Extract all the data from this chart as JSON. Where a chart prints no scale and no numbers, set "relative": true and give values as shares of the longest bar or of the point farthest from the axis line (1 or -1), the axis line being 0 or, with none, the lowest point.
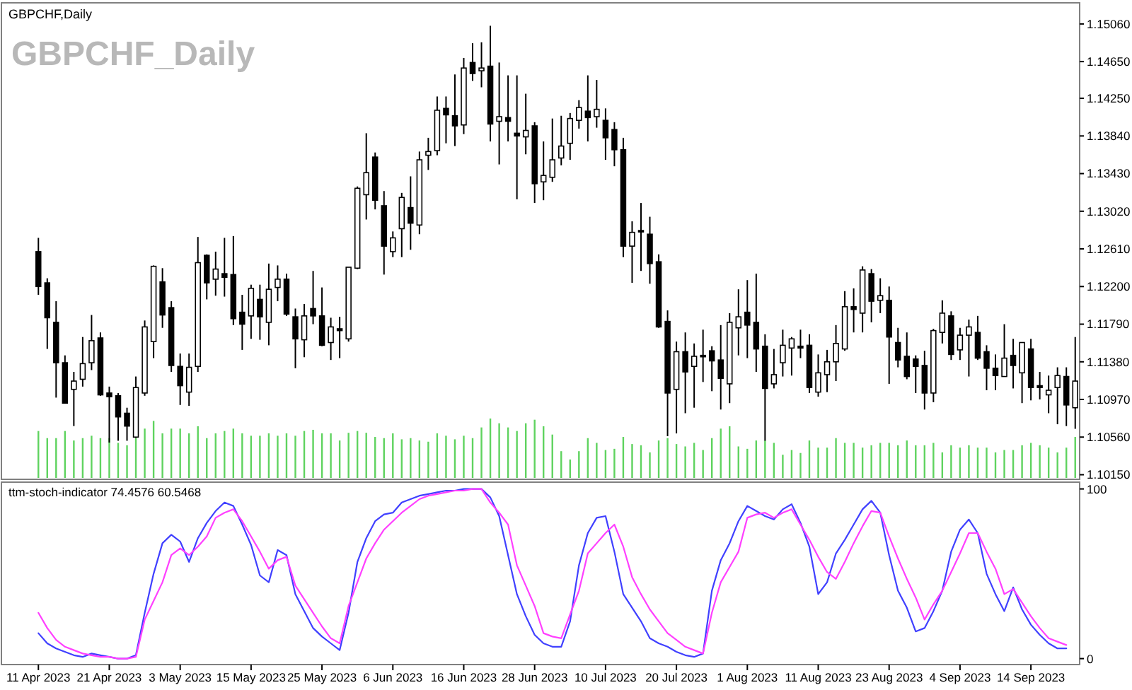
{
  "chart_data": [
    {
      "type": "candlestick",
      "title": "GBPCHF,Daily",
      "color": "#000000",
      "annotations": [
        "GBPCHF_Daily"
      ],
      "tick_labels": "y",
      "categories": [
        null,
        null,
        null,
        null,
        null,
        null,
        null,
        null,
        null,
        null,
        null,
        null,
        null,
        null,
        null,
        null,
        null,
        null,
        null,
        null,
        null,
        null,
        null,
        null,
        null,
        null,
        null,
        null,
        null,
        null,
        null,
        null,
        null,
        null,
        null,
        null,
        null,
        null,
        null,
        null,
        null,
        null,
        null,
        null,
        null,
        null,
        null,
        null,
        null,
        null,
        null,
        null,
        null,
        null,
        null,
        null,
        null,
        null,
        null,
        null,
        null,
        null,
        null,
        null,
        null,
        null,
        null,
        null,
        null,
        null,
        null,
        null,
        null,
        null,
        null,
        null,
        null,
        null,
        null,
        null,
        null,
        null,
        null,
        null,
        null,
        null,
        null,
        null,
        null,
        null,
        null,
        null,
        null,
        null,
        null,
        null,
        null,
        null,
        null,
        null,
        null,
        null,
        null,
        null,
        null,
        null,
        null,
        null,
        null,
        null,
        null,
        null,
        null,
        null,
        null,
        null,
        null,
        null
      ],
      "ylim": [
        1.101,
        1.1529
      ],
      "yticks": [
        {
          "value": 1.1015,
          "label": "1.10150"
        },
        {
          "value": 1.1056,
          "label": "1.10560"
        },
        {
          "value": 1.1097,
          "label": "1.10970"
        },
        {
          "value": 1.1138,
          "label": "1.11380"
        },
        {
          "value": 1.1179,
          "label": "1.11790"
        },
        {
          "value": 1.122,
          "label": "1.12200"
        },
        {
          "value": 1.1261,
          "label": "1.12610"
        },
        {
          "value": 1.1302,
          "label": "1.13020"
        },
        {
          "value": 1.1343,
          "label": "1.13430"
        },
        {
          "value": 1.1384,
          "label": "1.13840"
        },
        {
          "value": 1.1425,
          "label": "1.14250"
        },
        {
          "value": 1.1465,
          "label": "1.14650"
        },
        {
          "value": 1.1506,
          "label": "1.15060"
        }
      ],
      "ohlc": [
        [
          1.1258,
          1.1273,
          1.1211,
          1.122
        ],
        [
          1.1224,
          1.1229,
          1.1152,
          1.1186
        ],
        [
          1.1181,
          1.1204,
          1.1099,
          1.1137
        ],
        [
          1.1137,
          1.1145,
          1.1093,
          1.1093
        ],
        [
          1.1108,
          1.1127,
          1.1068,
          1.1117
        ],
        [
          1.1119,
          1.1165,
          1.1111,
          1.1136
        ],
        [
          1.1137,
          1.1189,
          1.1129,
          1.1161
        ],
        [
          1.1164,
          1.117,
          1.1101,
          1.1102
        ],
        [
          1.1104,
          1.1111,
          1.105,
          1.11
        ],
        [
          1.1101,
          1.1104,
          1.1052,
          1.1078
        ],
        [
          1.1082,
          1.1088,
          1.1052,
          1.1068
        ],
        [
          1.1056,
          1.1122,
          1.1055,
          1.111
        ],
        [
          1.1104,
          1.1183,
          1.1101,
          1.1176
        ],
        [
          1.116,
          1.1243,
          1.1142,
          1.1242
        ],
        [
          1.1225,
          1.124,
          1.1175,
          1.1189
        ],
        [
          1.1197,
          1.1204,
          1.1127,
          1.1134
        ],
        [
          1.1133,
          1.1147,
          1.1091,
          1.1112
        ],
        [
          1.1105,
          1.1147,
          1.109,
          1.1132
        ],
        [
          1.1133,
          1.1274,
          1.1127,
          1.1246
        ],
        [
          1.1254,
          1.1255,
          1.1206,
          1.1224
        ],
        [
          1.1228,
          1.1258,
          1.121,
          1.1239
        ],
        [
          1.1234,
          1.1273,
          1.1209,
          1.123
        ],
        [
          1.1233,
          1.1275,
          1.1178,
          1.1185
        ],
        [
          1.1192,
          1.1211,
          1.1151,
          1.1179
        ],
        [
          1.1188,
          1.1222,
          1.1163,
          1.1218
        ],
        [
          1.1206,
          1.1222,
          1.1162,
          1.1187
        ],
        [
          1.1181,
          1.1245,
          1.1156,
          1.1217
        ],
        [
          1.1219,
          1.1243,
          1.1204,
          1.1228
        ],
        [
          1.1228,
          1.1234,
          1.1188,
          1.119
        ],
        [
          1.1187,
          1.1196,
          1.1131,
          1.1163
        ],
        [
          1.1162,
          1.1201,
          1.1143,
          1.1188
        ],
        [
          1.1196,
          1.1237,
          1.1179,
          1.1188
        ],
        [
          1.1188,
          1.1219,
          1.1155,
          1.1156
        ],
        [
          1.1159,
          1.1186,
          1.114,
          1.1176
        ],
        [
          1.1174,
          1.1187,
          1.1142,
          1.1172
        ],
        [
          1.1163,
          1.1241,
          1.116,
          1.1241
        ],
        [
          1.124,
          1.1329,
          1.1239,
          1.1327
        ],
        [
          1.132,
          1.1387,
          1.1293,
          1.1344
        ],
        [
          1.1361,
          1.1366,
          1.1304,
          1.1314
        ],
        [
          1.1308,
          1.1324,
          1.1233,
          1.1264
        ],
        [
          1.1258,
          1.128,
          1.1252,
          1.1273
        ],
        [
          1.1283,
          1.1322,
          1.1252,
          1.1317
        ],
        [
          1.1306,
          1.134,
          1.126,
          1.1289
        ],
        [
          1.1287,
          1.1367,
          1.1277,
          1.1358
        ],
        [
          1.1363,
          1.1382,
          1.1347,
          1.1367
        ],
        [
          1.1368,
          1.1427,
          1.1363,
          1.1412
        ],
        [
          1.1414,
          1.1427,
          1.1376,
          1.1407
        ],
        [
          1.1406,
          1.1451,
          1.1373,
          1.1395
        ],
        [
          1.1396,
          1.1469,
          1.1386,
          1.1458
        ],
        [
          1.1464,
          1.1485,
          1.1444,
          1.1452
        ],
        [
          1.1455,
          1.1486,
          1.1437,
          1.1458
        ],
        [
          1.146,
          1.1504,
          1.1378,
          1.1397
        ],
        [
          1.14,
          1.1464,
          1.1353,
          1.1405
        ],
        [
          1.1404,
          1.145,
          1.1378,
          1.14
        ],
        [
          1.1387,
          1.145,
          1.1315,
          1.1384
        ],
        [
          1.1383,
          1.143,
          1.1364,
          1.139
        ],
        [
          1.1395,
          1.1399,
          1.1311,
          1.1332
        ],
        [
          1.1334,
          1.1378,
          1.1314,
          1.1341
        ],
        [
          1.1339,
          1.1403,
          1.1334,
          1.1358
        ],
        [
          1.136,
          1.1406,
          1.1352,
          1.1373
        ],
        [
          1.1376,
          1.1409,
          1.1358,
          1.1403
        ],
        [
          1.1401,
          1.1423,
          1.1392,
          1.1415
        ],
        [
          1.1411,
          1.145,
          1.1378,
          1.1404
        ],
        [
          1.1405,
          1.1445,
          1.1393,
          1.1413
        ],
        [
          1.1401,
          1.1414,
          1.1358,
          1.1382
        ],
        [
          1.1391,
          1.1399,
          1.1351,
          1.1369
        ],
        [
          1.1369,
          1.1382,
          1.1252,
          1.1264
        ],
        [
          1.1264,
          1.1291,
          1.1224,
          1.1279
        ],
        [
          1.1281,
          1.1311,
          1.1237,
          1.128
        ],
        [
          1.1277,
          1.1296,
          1.1223,
          1.1245
        ],
        [
          1.1247,
          1.1255,
          1.1175,
          1.1176
        ],
        [
          1.1182,
          1.1194,
          1.1057,
          1.1104
        ],
        [
          1.1108,
          1.116,
          1.106,
          1.1149
        ],
        [
          1.1149,
          1.117,
          1.1082,
          1.1127
        ],
        [
          1.1133,
          1.1158,
          1.1088,
          1.1144
        ],
        [
          1.1145,
          1.1173,
          1.1116,
          1.1144
        ],
        [
          1.115,
          1.1155,
          1.1106,
          1.1139
        ],
        [
          1.114,
          1.1178,
          1.1086,
          1.112
        ],
        [
          1.1114,
          1.1191,
          1.1093,
          1.1181
        ],
        [
          1.1175,
          1.1217,
          1.1145,
          1.1187
        ],
        [
          1.1192,
          1.1227,
          1.1142,
          1.1178
        ],
        [
          1.1181,
          1.1234,
          1.1127,
          1.1152
        ],
        [
          1.1155,
          1.1168,
          1.1052,
          1.1109
        ],
        [
          1.1114,
          1.1152,
          1.1109,
          1.1124
        ],
        [
          1.1137,
          1.1173,
          1.1122,
          1.1156
        ],
        [
          1.1153,
          1.1165,
          1.1123,
          1.1163
        ],
        [
          1.1155,
          1.1173,
          1.1142,
          1.1153
        ],
        [
          1.1156,
          1.1168,
          1.1104,
          1.111
        ],
        [
          1.1105,
          1.1146,
          1.11,
          1.1126
        ],
        [
          1.1124,
          1.1151,
          1.1105,
          1.1138
        ],
        [
          1.1138,
          1.1178,
          1.1117,
          1.1158
        ],
        [
          1.1152,
          1.1215,
          1.115,
          1.1198
        ],
        [
          1.1198,
          1.1218,
          1.117,
          1.1195
        ],
        [
          1.1191,
          1.1242,
          1.117,
          1.1238
        ],
        [
          1.1234,
          1.1239,
          1.1181,
          1.1204
        ],
        [
          1.1205,
          1.1229,
          1.1191,
          1.121
        ],
        [
          1.1205,
          1.122,
          1.1114,
          1.1165
        ],
        [
          1.1159,
          1.1175,
          1.1132,
          1.114
        ],
        [
          1.1144,
          1.117,
          1.1119,
          1.1122
        ],
        [
          1.1141,
          1.1145,
          1.1104,
          1.1133
        ],
        [
          1.1134,
          1.115,
          1.1086,
          1.1104
        ],
        [
          1.1104,
          1.1174,
          1.1094,
          1.1172
        ],
        [
          1.117,
          1.1205,
          1.1158,
          1.1191
        ],
        [
          1.1188,
          1.1193,
          1.114,
          1.1146
        ],
        [
          1.1151,
          1.1175,
          1.114,
          1.1167
        ],
        [
          1.1167,
          1.1184,
          1.1122,
          1.1176
        ],
        [
          1.117,
          1.1188,
          1.114,
          1.1142
        ],
        [
          1.1149,
          1.1156,
          1.1107,
          1.1131
        ],
        [
          1.1131,
          1.1146,
          1.1107,
          1.1123
        ],
        [
          1.1122,
          1.1179,
          1.1122,
          1.1142
        ],
        [
          1.1145,
          1.1163,
          1.1109,
          1.1134
        ],
        [
          1.1126,
          1.1159,
          1.1093,
          1.1159
        ],
        [
          1.1152,
          1.1163,
          1.1096,
          1.111
        ],
        [
          1.1112,
          1.1127,
          1.1097,
          1.111
        ],
        [
          1.1102,
          1.1123,
          1.1082,
          1.1107
        ],
        [
          1.111,
          1.1132,
          1.107,
          1.1123
        ],
        [
          1.1122,
          1.1132,
          1.1068,
          1.1091
        ],
        [
          1.1088,
          1.1165,
          1.1065,
          1.1117
        ]
      ]
    },
    {
      "type": "bar",
      "relative": true,
      "color": "#5fd35f",
      "tick_labels": false,
      "categories": [
        null,
        null,
        null,
        null,
        null,
        null,
        null,
        null,
        null,
        null,
        null,
        null,
        null,
        null,
        null,
        null,
        null,
        null,
        null,
        null,
        null,
        null,
        null,
        null,
        null,
        null,
        null,
        null,
        null,
        null,
        null,
        null,
        null,
        null,
        null,
        null,
        null,
        null,
        null,
        null,
        null,
        null,
        null,
        null,
        null,
        null,
        null,
        null,
        null,
        null,
        null,
        null,
        null,
        null,
        null,
        null,
        null,
        null,
        null,
        null,
        null,
        null,
        null,
        null,
        null,
        null,
        null,
        null,
        null,
        null,
        null,
        null,
        null,
        null,
        null,
        null,
        null,
        null,
        null,
        null,
        null,
        null,
        null,
        null,
        null,
        null,
        null,
        null,
        null,
        null,
        null,
        null,
        null,
        null,
        null,
        null,
        null,
        null,
        null,
        null,
        null,
        null,
        null,
        null,
        null,
        null,
        null,
        null,
        null,
        null,
        null,
        null,
        null,
        null,
        null,
        null,
        null,
        null
      ],
      "values": [
        0.79,
        0.67,
        0.67,
        0.79,
        0.63,
        0.67,
        0.71,
        0.67,
        0.67,
        0.59,
        0.55,
        0.67,
        0.83,
        0.96,
        0.75,
        0.83,
        0.83,
        0.75,
        0.87,
        0.67,
        0.75,
        0.79,
        0.83,
        0.75,
        0.71,
        0.71,
        0.75,
        0.71,
        0.75,
        0.71,
        0.79,
        0.81,
        0.75,
        0.75,
        0.63,
        0.76,
        0.79,
        0.76,
        0.69,
        0.67,
        0.75,
        0.65,
        0.67,
        0.63,
        0.61,
        0.75,
        0.71,
        0.65,
        0.71,
        0.67,
        0.85,
        1,
        0.92,
        0.85,
        0.79,
        0.92,
        0.98,
        0.87,
        0.73,
        0.45,
        0.31,
        0.45,
        0.67,
        0.59,
        0.47,
        0.49,
        0.69,
        0.57,
        0.55,
        0.43,
        0.63,
        0.67,
        0.57,
        0.53,
        0.59,
        0.47,
        0.67,
        0.83,
        0.87,
        0.53,
        0.49,
        0.63,
        0.63,
        0.59,
        0.39,
        0.47,
        0.42,
        0.63,
        0.51,
        0.51,
        0.67,
        0.59,
        0.59,
        0.51,
        0.55,
        0.59,
        0.59,
        0.55,
        0.63,
        0.55,
        0.55,
        0.59,
        0.43,
        0.55,
        0.51,
        0.55,
        0.51,
        0.51,
        0.43,
        0.47,
        0.47,
        0.55,
        0.59,
        0.55,
        0.51,
        0.43,
        0.51,
        0.69
      ]
    },
    {
      "type": "line",
      "title": "ttm-stoch-indicator 74.4576 60.5468",
      "ylim": [
        -3.5,
        104
      ],
      "yticks": [
        0,
        100
      ],
      "categories": [
        "11 Apr 2023",
        null,
        null,
        null,
        null,
        null,
        null,
        null,
        "21 Apr 2023",
        null,
        null,
        null,
        null,
        null,
        null,
        null,
        "3 May 2023",
        null,
        null,
        null,
        null,
        null,
        null,
        null,
        "15 May 2023",
        null,
        null,
        null,
        null,
        null,
        null,
        null,
        "25 May 2023",
        null,
        null,
        null,
        null,
        null,
        null,
        null,
        "6 Jun 2023",
        null,
        null,
        null,
        null,
        null,
        null,
        null,
        "16 Jun 2023",
        null,
        null,
        null,
        null,
        null,
        null,
        null,
        "28 Jun 2023",
        null,
        null,
        null,
        null,
        null,
        null,
        null,
        "10 Jul 2023",
        null,
        null,
        null,
        null,
        null,
        null,
        null,
        "20 Jul 2023",
        null,
        null,
        null,
        null,
        null,
        null,
        null,
        "1 Aug 2023",
        null,
        null,
        null,
        null,
        null,
        null,
        null,
        "11 Aug 2023",
        null,
        null,
        null,
        null,
        null,
        null,
        null,
        "23 Aug 2023",
        null,
        null,
        null,
        null,
        null,
        null,
        null,
        "4 Sep 2023",
        null,
        null,
        null,
        null,
        null,
        null,
        null,
        "14 Sep 2023",
        null,
        null,
        null,
        null,
        null
      ],
      "series": [
        {
          "color": "#4040ff",
          "values": [
            15,
            9,
            6,
            4,
            2,
            1,
            3,
            2,
            1,
            0,
            0,
            2,
            27,
            50,
            68,
            73,
            69,
            57,
            71,
            80,
            87,
            92,
            90,
            79,
            67,
            49,
            45,
            64,
            61,
            38,
            28,
            18,
            13,
            9,
            5,
            27,
            57,
            71,
            81,
            85,
            86,
            92,
            94,
            96,
            97,
            98,
            99,
            99,
            100,
            100,
            100,
            95,
            84,
            61,
            38,
            25,
            14,
            9,
            7,
            7,
            22,
            55,
            74,
            83,
            84,
            63,
            38,
            30,
            22,
            12,
            9,
            7,
            4,
            2,
            1,
            3,
            40,
            58,
            68,
            81,
            90,
            87,
            84,
            82,
            88,
            91,
            80,
            66,
            38,
            45,
            62,
            70,
            79,
            88,
            93,
            86,
            61,
            40,
            30,
            16,
            18,
            28,
            40,
            63,
            76,
            82,
            74,
            50,
            38,
            28,
            42,
            29,
            20,
            14,
            9,
            6,
            6,
            null
          ]
        },
        {
          "color": "#ff40ff",
          "values": [
            27,
            18,
            11,
            7,
            5,
            3,
            2,
            1,
            1,
            0,
            0,
            1,
            23,
            34,
            45,
            61,
            65,
            61,
            66,
            72,
            83,
            86,
            88,
            81,
            72,
            63,
            53,
            58,
            60,
            43,
            35,
            27,
            19,
            12,
            9,
            31,
            45,
            59,
            68,
            76,
            81,
            86,
            90,
            94,
            96,
            97,
            98,
            99,
            99,
            100,
            100,
            92,
            86,
            79,
            55,
            43,
            31,
            15,
            13,
            12,
            26,
            40,
            62,
            68,
            74,
            79,
            66,
            48,
            38,
            29,
            22,
            15,
            11,
            7,
            5,
            3,
            27,
            45,
            54,
            63,
            83,
            85,
            86,
            83,
            86,
            88,
            79,
            70,
            60,
            51,
            47,
            57,
            68,
            78,
            87,
            86,
            72,
            59,
            47,
            36,
            23,
            32,
            40,
            51,
            62,
            74,
            74,
            63,
            53,
            38,
            41,
            33,
            25,
            18,
            12,
            10,
            8,
            null
          ]
        }
      ]
    }
  ]
}
